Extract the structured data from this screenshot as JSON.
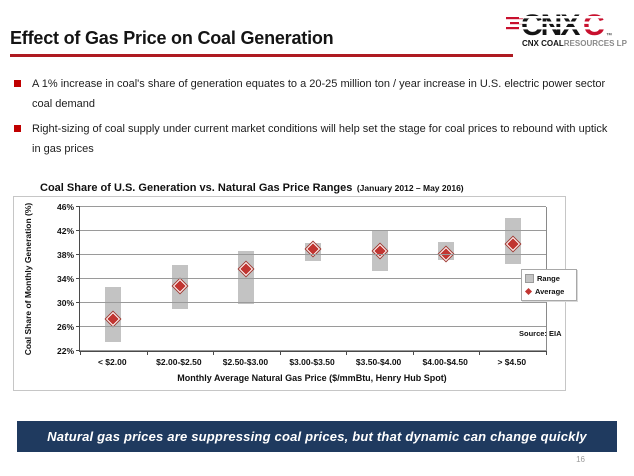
{
  "header": {
    "title": "Effect of Gas Price on Coal Generation",
    "logo": {
      "letters_black": "CNX",
      "letter_red": "C",
      "trademark": "™",
      "subtitle_bold": "CNX COAL",
      "subtitle_light": "RESOURCES LP"
    }
  },
  "bullets": [
    {
      "text": "A 1% increase in coal's share of generation equates to a 20-25 million ton / year increase in U.S. electric power sector coal demand"
    },
    {
      "text": "Right-sizing of coal supply under current market conditions will help set the stage for coal prices to rebound with uptick in gas prices"
    }
  ],
  "chart_data": {
    "type": "bar",
    "subtype": "floating-range-bars-with-average-markers",
    "title": "Coal Share of U.S. Generation vs. Natural Gas Price Ranges",
    "title_period": "(January 2012 – May 2016)",
    "xlabel": "Monthly Average Natural Gas Price ($/mmBtu, Henry Hub Spot)",
    "ylabel": "Coal Share of Monthly Generation (%)",
    "ylim": [
      22,
      46
    ],
    "ytick_values": [
      46,
      42,
      38,
      34,
      30,
      26,
      22
    ],
    "ytick_labels": [
      "46%",
      "42%",
      "38%",
      "34%",
      "30%",
      "26%",
      "22%"
    ],
    "grid": true,
    "categories": [
      "< $2.00",
      "$2.00-$2.50",
      "$2.50-$3.00",
      "$3.00-$3.50",
      "$3.50-$4.00",
      "$4.00-$4.50",
      "> $4.50"
    ],
    "series": [
      {
        "name": "Range",
        "type": "range",
        "low": [
          23.5,
          29.0,
          29.8,
          37.0,
          35.4,
          37.2,
          36.5
        ],
        "high": [
          32.6,
          36.3,
          38.7,
          40.0,
          42.0,
          40.2,
          44.1
        ]
      },
      {
        "name": "Average",
        "type": "marker",
        "values": [
          27.3,
          32.8,
          35.6,
          39.0,
          38.7,
          38.2,
          39.8
        ]
      }
    ],
    "legend": {
      "position": "right",
      "items": [
        {
          "label": "Range",
          "marker": "gray-square"
        },
        {
          "label": "Average",
          "marker": "red-diamond"
        }
      ]
    },
    "source": "Source: EIA"
  },
  "banner": {
    "text": "Natural gas prices are suppressing coal prices, but that dynamic can change quickly"
  },
  "page_number": "16",
  "colors": {
    "title_rule_red": "#AE1A21",
    "bullet_red": "#C00000",
    "bar_gray": "#C3C3C3",
    "marker_red": "#C13531",
    "banner_navy": "#1F3A5F",
    "logo_red": "#C8102E"
  }
}
